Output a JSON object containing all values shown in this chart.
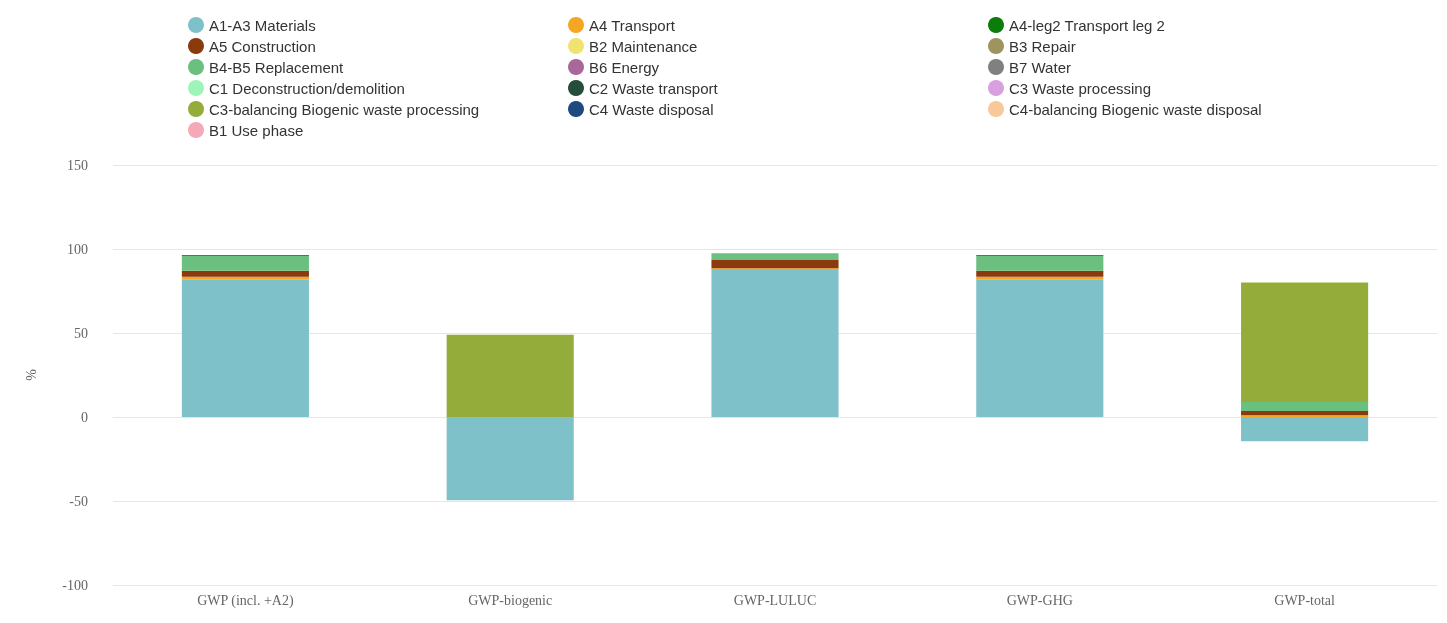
{
  "chart_data": {
    "type": "bar",
    "stacked": true,
    "ylabel": "%",
    "categories": [
      "GWP (incl. +A2)",
      "GWP-biogenic",
      "GWP-LULUC",
      "GWP-GHG",
      "GWP-total"
    ],
    "ylim": [
      -100,
      150
    ],
    "yticks": [
      -100,
      -50,
      0,
      50,
      100,
      150
    ],
    "grid": "y",
    "legend": "top",
    "marker": "circle",
    "series": [
      {
        "name": "A1-A3 Materials",
        "color": "#7fc1c9",
        "values": [
          82,
          -49.5,
          87.5,
          82,
          -14.5
        ]
      },
      {
        "name": "A4 Transport",
        "color": "#f5a623",
        "values": [
          1.5,
          null,
          1,
          1.5,
          1
        ]
      },
      {
        "name": "A4-leg2 Transport leg 2",
        "color": "#0a7d0a",
        "values": [
          null,
          null,
          null,
          null,
          null
        ]
      },
      {
        "name": "A5 Construction",
        "color": "#8b3a0e",
        "values": [
          3.5,
          null,
          5,
          3.5,
          2.5
        ]
      },
      {
        "name": "B2 Maintenance",
        "color": "#f0e36f",
        "values": [
          null,
          null,
          null,
          null,
          null
        ]
      },
      {
        "name": "B3 Repair",
        "color": "#9e9460",
        "values": [
          null,
          null,
          null,
          null,
          null
        ]
      },
      {
        "name": "B4-B5 Replacement",
        "color": "#6bbf7f",
        "values": [
          9,
          null,
          4,
          9,
          5.5
        ]
      },
      {
        "name": "B6 Energy",
        "color": "#a8689a",
        "values": [
          null,
          null,
          null,
          null,
          null
        ]
      },
      {
        "name": "B7 Water",
        "color": "#808080",
        "values": [
          null,
          null,
          null,
          null,
          null
        ]
      },
      {
        "name": "C1 Deconstruction/demolition",
        "color": "#9ef5b8",
        "values": [
          null,
          null,
          null,
          null,
          null
        ]
      },
      {
        "name": "C2 Waste transport",
        "color": "#254d3a",
        "values": [
          0.5,
          null,
          null,
          0.5,
          null
        ]
      },
      {
        "name": "C3 Waste processing",
        "color": "#d9a0e0",
        "values": [
          null,
          null,
          null,
          null,
          null
        ]
      },
      {
        "name": "C3-balancing Biogenic waste processing",
        "color": "#94ad3a",
        "values": [
          null,
          49,
          null,
          null,
          71
        ]
      },
      {
        "name": "C4 Waste disposal",
        "color": "#1f4a80",
        "values": [
          null,
          null,
          null,
          null,
          null
        ]
      },
      {
        "name": "C4-balancing Biogenic waste disposal",
        "color": "#f7c89a",
        "values": [
          null,
          null,
          null,
          null,
          null
        ]
      },
      {
        "name": "B1 Use phase",
        "color": "#f5a8b8",
        "values": [
          null,
          null,
          null,
          null,
          null
        ]
      }
    ]
  }
}
